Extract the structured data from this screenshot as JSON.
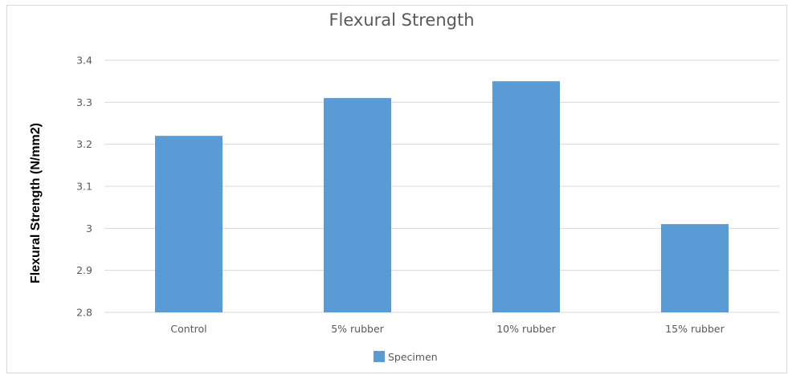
{
  "chart_data": {
    "type": "bar",
    "title": "Flexural Strength",
    "xlabel": "",
    "ylabel": "Flexural Strength (N/mm2)",
    "categories": [
      "Control",
      "5% rubber",
      "10% rubber",
      "15% rubber"
    ],
    "series": [
      {
        "name": "Specimen",
        "color": "#5b9bd5",
        "values": [
          3.22,
          3.31,
          3.35,
          3.01
        ]
      }
    ],
    "ylim": [
      2.8,
      3.4
    ],
    "yticks": [
      "2.8",
      "2.9",
      "3",
      "3.1",
      "3.2",
      "3.3",
      "3.4"
    ],
    "grid": true,
    "gridline_color": "#d9d9d9",
    "legend_position": "bottom"
  }
}
